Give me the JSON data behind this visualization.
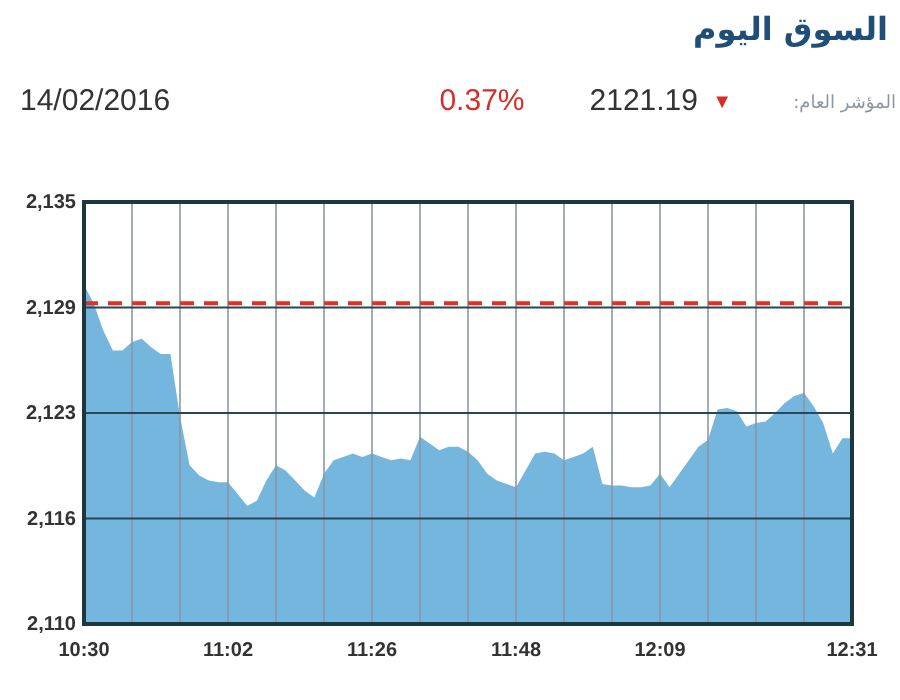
{
  "chart_data": {
    "type": "area",
    "title": "السوق اليوم",
    "subtitle": "14/02/2016",
    "annotations": [
      "المؤشر العام:",
      "▼",
      "2121.19",
      "0.37%"
    ],
    "categories": [
      "10:30",
      null,
      null,
      null,
      null,
      null,
      null,
      null,
      null,
      null,
      null,
      null,
      null,
      null,
      null,
      "11:02",
      null,
      null,
      null,
      null,
      null,
      null,
      null,
      null,
      null,
      null,
      null,
      null,
      null,
      null,
      "11:26",
      null,
      null,
      null,
      null,
      null,
      null,
      null,
      null,
      null,
      null,
      null,
      null,
      null,
      null,
      "11:48",
      null,
      null,
      null,
      null,
      null,
      null,
      null,
      null,
      null,
      null,
      null,
      null,
      null,
      null,
      "12:09",
      null,
      null,
      null,
      null,
      null,
      null,
      null,
      null,
      null,
      null,
      null,
      null,
      null,
      null,
      null,
      null,
      null,
      null,
      null,
      "12:31"
    ],
    "values": [
      2130.1,
      2129.0,
      2127.4,
      2126.2,
      2126.2,
      2126.7,
      2126.9,
      2126.4,
      2126.0,
      2126.0,
      2122.3,
      2119.4,
      2118.8,
      2118.5,
      2118.4,
      2118.4,
      2117.7,
      2117.0,
      2117.3,
      2118.5,
      2119.4,
      2119.1,
      2118.5,
      2117.9,
      2117.5,
      2118.9,
      2119.7,
      2119.9,
      2120.1,
      2119.9,
      2120.1,
      2119.9,
      2119.7,
      2119.8,
      2119.7,
      2121.1,
      2120.7,
      2120.3,
      2120.5,
      2120.5,
      2120.2,
      2119.7,
      2118.9,
      2118.5,
      2118.3,
      2118.1,
      2119.1,
      2120.1,
      2120.2,
      2120.1,
      2119.7,
      2119.9,
      2120.1,
      2120.5,
      2118.3,
      2118.2,
      2118.2,
      2118.1,
      2118.1,
      2118.2,
      2118.9,
      2118.1,
      2118.9,
      2119.7,
      2120.5,
      2120.9,
      2122.7,
      2122.8,
      2122.6,
      2121.7,
      2121.9,
      2122.0,
      2122.5,
      2123.1,
      2123.5,
      2123.7,
      2122.9,
      2121.9,
      2120.1,
      2121.0,
      2121.0
    ],
    "color": "#74b6dd",
    "ylim": [
      2110,
      2135
    ],
    "yticks": [
      {
        "value": 2110,
        "label": "2,110"
      },
      {
        "value": 2116.25,
        "label": "2,116"
      },
      {
        "value": 2122.5,
        "label": "2,123"
      },
      {
        "value": 2128.75,
        "label": "2,129"
      },
      {
        "value": 2135,
        "label": "2,135"
      }
    ],
    "ref_lines": [
      {
        "axis": "y",
        "value": 2129,
        "color": "#e0302a",
        "line_style": "dashed"
      }
    ],
    "grid": true
  }
}
